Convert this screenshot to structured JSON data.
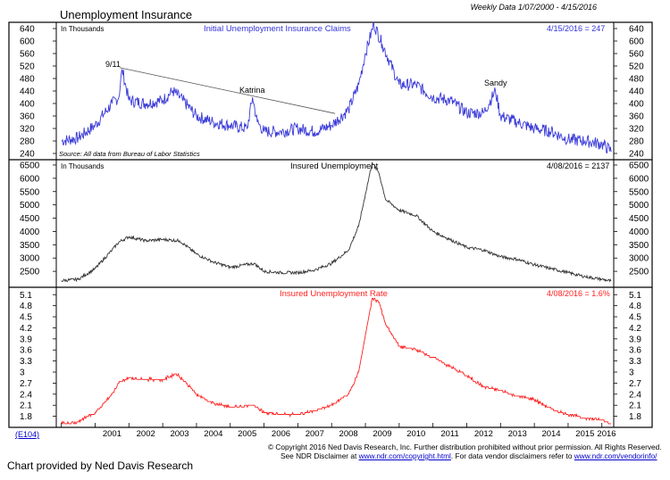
{
  "header": {
    "title": "Unemployment Insurance",
    "date_range": "Weekly Data 1/07/2000 - 4/15/2016"
  },
  "chart_data": [
    {
      "type": "line",
      "title": "Initial Unemployment Insurance Claims",
      "unit_label": "In Thousands",
      "latest_reading": "4/15/2016 = 247",
      "source_note": "Source: All data from Bureau of Labor Statistics",
      "line_color": "#3a3ad9",
      "ylim": [
        220,
        660
      ],
      "yticks": [
        240,
        280,
        320,
        360,
        400,
        440,
        480,
        520,
        560,
        600,
        640
      ],
      "annotations": [
        "9/11",
        "Katrina",
        "Sandy"
      ],
      "x": [
        2000.0,
        2000.5,
        2001.0,
        2001.5,
        2001.7,
        2001.8,
        2002.0,
        2002.5,
        2003.0,
        2003.3,
        2003.6,
        2004.0,
        2004.5,
        2005.0,
        2005.5,
        2005.66,
        2005.8,
        2006.0,
        2006.5,
        2007.0,
        2007.5,
        2008.0,
        2008.5,
        2008.8,
        2009.0,
        2009.25,
        2009.5,
        2010.0,
        2010.5,
        2011.0,
        2011.5,
        2012.0,
        2012.5,
        2012.85,
        2013.0,
        2013.5,
        2014.0,
        2014.5,
        2015.0,
        2015.5,
        2016.0,
        2016.29
      ],
      "values": [
        280,
        290,
        330,
        400,
        420,
        510,
        410,
        400,
        410,
        440,
        410,
        360,
        340,
        330,
        320,
        420,
        340,
        310,
        310,
        320,
        310,
        330,
        380,
        460,
        560,
        655,
        590,
        460,
        460,
        420,
        410,
        370,
        370,
        440,
        360,
        340,
        320,
        310,
        285,
        280,
        270,
        247
      ]
    },
    {
      "type": "line",
      "title": "Insured Unemployment",
      "unit_label": "In Thousands",
      "latest_reading": "4/08/2016 = 2137",
      "line_color": "#333333",
      "ylim": [
        1900,
        6700
      ],
      "yticks": [
        2500,
        3000,
        3500,
        4000,
        4500,
        5000,
        5500,
        6000,
        6500
      ],
      "x": [
        2000.0,
        2000.5,
        2001.0,
        2001.5,
        2001.7,
        2002.0,
        2002.5,
        2003.0,
        2003.5,
        2004.0,
        2004.5,
        2005.0,
        2005.7,
        2006.0,
        2006.5,
        2007.0,
        2007.5,
        2008.0,
        2008.5,
        2008.8,
        2009.0,
        2009.2,
        2009.4,
        2009.6,
        2010.0,
        2010.5,
        2011.0,
        2011.5,
        2012.0,
        2012.5,
        2013.0,
        2013.5,
        2014.0,
        2014.5,
        2015.0,
        2015.5,
        2016.0,
        2016.27
      ],
      "values": [
        2150,
        2200,
        2600,
        3300,
        3600,
        3800,
        3650,
        3700,
        3650,
        3150,
        2850,
        2650,
        2800,
        2500,
        2450,
        2450,
        2550,
        2800,
        3300,
        4200,
        5400,
        6600,
        6200,
        5200,
        4800,
        4600,
        4000,
        3700,
        3400,
        3300,
        3050,
        2950,
        2750,
        2600,
        2450,
        2300,
        2200,
        2137
      ]
    },
    {
      "type": "line",
      "title": "Insured Unemployment Rate",
      "latest_reading": "4/08/2016 = 1.6%",
      "line_color": "#ff2020",
      "ylim": [
        1.5,
        5.3
      ],
      "yticks": [
        1.8,
        2.1,
        2.4,
        2.7,
        3.0,
        3.3,
        3.6,
        3.9,
        4.2,
        4.5,
        4.8,
        5.1
      ],
      "x": [
        2000.0,
        2000.5,
        2001.0,
        2001.5,
        2001.7,
        2002.0,
        2002.5,
        2003.0,
        2003.4,
        2003.6,
        2004.0,
        2004.5,
        2005.0,
        2005.7,
        2006.0,
        2006.5,
        2007.0,
        2007.5,
        2008.0,
        2008.5,
        2008.8,
        2009.0,
        2009.2,
        2009.4,
        2009.6,
        2010.0,
        2010.5,
        2011.0,
        2011.5,
        2012.0,
        2012.5,
        2013.0,
        2013.5,
        2014.0,
        2014.5,
        2015.0,
        2015.5,
        2016.0,
        2016.27
      ],
      "values": [
        1.6,
        1.65,
        1.9,
        2.4,
        2.7,
        2.85,
        2.8,
        2.8,
        2.95,
        2.8,
        2.4,
        2.15,
        2.05,
        2.1,
        1.9,
        1.85,
        1.85,
        1.95,
        2.1,
        2.4,
        3.0,
        4.0,
        5.0,
        4.9,
        4.3,
        3.7,
        3.6,
        3.4,
        3.15,
        2.9,
        2.6,
        2.5,
        2.35,
        2.25,
        2.0,
        1.85,
        1.75,
        1.7,
        1.6
      ]
    }
  ],
  "x_axis": {
    "xlim": [
      1999.85,
      2016.35
    ],
    "year_labels": [
      "2001",
      "2002",
      "2003",
      "2004",
      "2005",
      "2006",
      "2007",
      "2008",
      "2009",
      "2010",
      "2011",
      "2012",
      "2013",
      "2014",
      "2015",
      "2016"
    ]
  },
  "footer": {
    "chart_code": "(E104)",
    "copyright": "© Copyright 2016 Ned Davis Research, Inc.  Further distribution prohibited without prior permission.  All Rights Reserved.",
    "disclaimer_prefix": "See NDR Disclaimer at",
    "disclaimer_link": "www.ndr.com/copyright.html",
    "disclaimer_middle": ". For data vendor disclaimers refer to",
    "vendor_link": "www.ndr.com/vendorinfo/",
    "credit": "Chart provided by Ned Davis Research"
  }
}
